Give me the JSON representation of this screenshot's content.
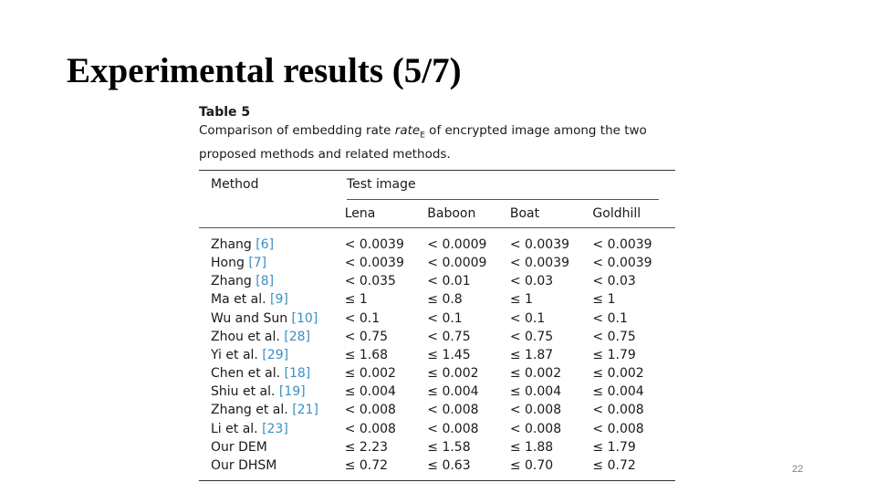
{
  "slide": {
    "title": "Experimental results (5/7)",
    "page_number": "22"
  },
  "table": {
    "label": "Table 5",
    "caption_before": "Comparison of embedding rate ",
    "caption_rate": "rate",
    "caption_rate_sub": "E",
    "caption_after": " of encrypted image among the two proposed methods and related methods.",
    "header_method": "Method",
    "header_test_image": "Test image",
    "columns": [
      "Lena",
      "Baboon",
      "Boat",
      "Goldhill"
    ],
    "rows": [
      {
        "method": "Zhang ",
        "ref": "[6]",
        "values": [
          "< 0.0039",
          "< 0.0009",
          "< 0.0039",
          "< 0.0039"
        ]
      },
      {
        "method": "Hong ",
        "ref": "[7]",
        "values": [
          "< 0.0039",
          "< 0.0009",
          "< 0.0039",
          "< 0.0039"
        ]
      },
      {
        "method": "Zhang ",
        "ref": "[8]",
        "values": [
          "< 0.035",
          "< 0.01",
          "< 0.03",
          "< 0.03"
        ]
      },
      {
        "method": "Ma et al. ",
        "ref": "[9]",
        "values": [
          "≤ 1",
          "≤ 0.8",
          "≤ 1",
          "≤ 1"
        ]
      },
      {
        "method": "Wu and Sun ",
        "ref": "[10]",
        "values": [
          "< 0.1",
          "< 0.1",
          "< 0.1",
          "< 0.1"
        ]
      },
      {
        "method": "Zhou et al. ",
        "ref": "[28]",
        "values": [
          "< 0.75",
          "< 0.75",
          "< 0.75",
          "< 0.75"
        ]
      },
      {
        "method": "Yi et al. ",
        "ref": "[29]",
        "values": [
          "≤ 1.68",
          "≤ 1.45",
          "≤ 1.87",
          "≤ 1.79"
        ]
      },
      {
        "method": "Chen et al. ",
        "ref": "[18]",
        "values": [
          "≤ 0.002",
          "≤ 0.002",
          "≤ 0.002",
          "≤ 0.002"
        ]
      },
      {
        "method": "Shiu et al. ",
        "ref": "[19]",
        "values": [
          "≤ 0.004",
          "≤ 0.004",
          "≤ 0.004",
          "≤ 0.004"
        ]
      },
      {
        "method": "Zhang et al. ",
        "ref": "[21]",
        "values": [
          "< 0.008",
          "< 0.008",
          "< 0.008",
          "< 0.008"
        ]
      },
      {
        "method": "Li et al. ",
        "ref": "[23]",
        "values": [
          "< 0.008",
          "< 0.008",
          "< 0.008",
          "< 0.008"
        ]
      },
      {
        "method": "Our DEM",
        "ref": "",
        "values": [
          "≤ 2.23",
          "≤ 1.58",
          "≤ 1.88",
          "≤ 1.79"
        ]
      },
      {
        "method": "Our DHSM",
        "ref": "",
        "values": [
          "≤ 0.72",
          "≤ 0.63",
          "≤ 0.70",
          "≤ 0.72"
        ]
      }
    ]
  }
}
